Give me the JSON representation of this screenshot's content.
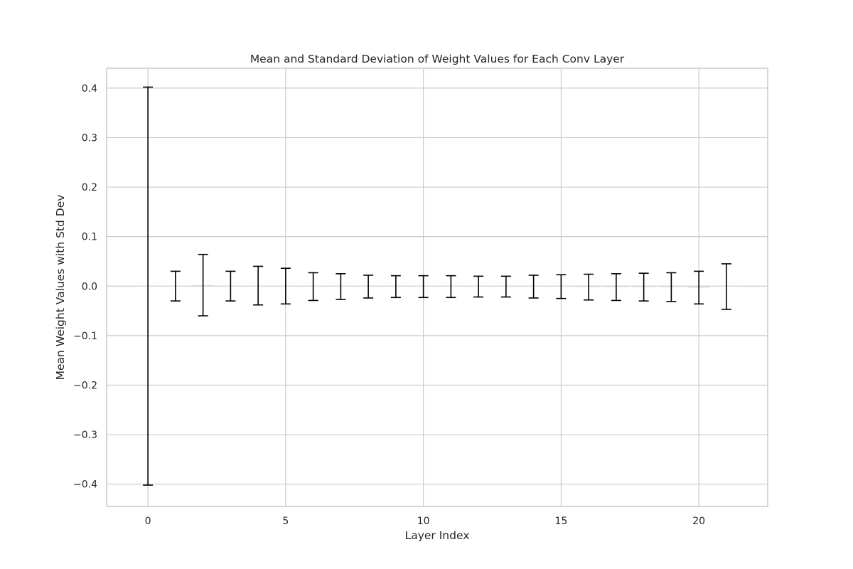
{
  "chart_data": {
    "type": "bar",
    "title": "Mean and Standard Deviation of Weight Values for Each Conv Layer",
    "xlabel": "Layer Index",
    "ylabel": "Mean Weight Values with Std Dev",
    "x": [
      0,
      1,
      2,
      3,
      4,
      5,
      6,
      7,
      8,
      9,
      10,
      11,
      12,
      13,
      14,
      15,
      16,
      17,
      18,
      19,
      20,
      21
    ],
    "means": [
      0.0,
      0.0,
      0.002,
      0.0,
      0.001,
      0.0,
      -0.001,
      -0.001,
      -0.001,
      -0.001,
      -0.001,
      -0.001,
      -0.001,
      -0.001,
      -0.001,
      -0.001,
      -0.002,
      -0.002,
      -0.002,
      -0.002,
      -0.003,
      -0.001
    ],
    "std_devs": [
      0.402,
      0.03,
      0.062,
      0.03,
      0.039,
      0.036,
      0.028,
      0.026,
      0.023,
      0.022,
      0.022,
      0.022,
      0.021,
      0.021,
      0.023,
      0.024,
      0.026,
      0.027,
      0.028,
      0.029,
      0.033,
      0.046
    ],
    "xlim": [
      -1.5,
      22.5
    ],
    "ylim": [
      -0.445,
      0.44
    ],
    "xticks": [
      0,
      5,
      10,
      15,
      20
    ],
    "yticks": [
      0.4,
      0.3,
      0.2,
      0.1,
      0.0,
      -0.1,
      -0.2,
      -0.3,
      -0.4
    ],
    "ytick_labels": [
      "0.4",
      "0.3",
      "0.2",
      "0.1",
      "0.0",
      "−0.1",
      "−0.2",
      "−0.3",
      "−0.4"
    ],
    "grid": true,
    "colors": {
      "bar": "#d9d9d9",
      "error": "#000000",
      "grid": "#cccccc",
      "frame": "#cccccc",
      "text": "#262626"
    }
  }
}
